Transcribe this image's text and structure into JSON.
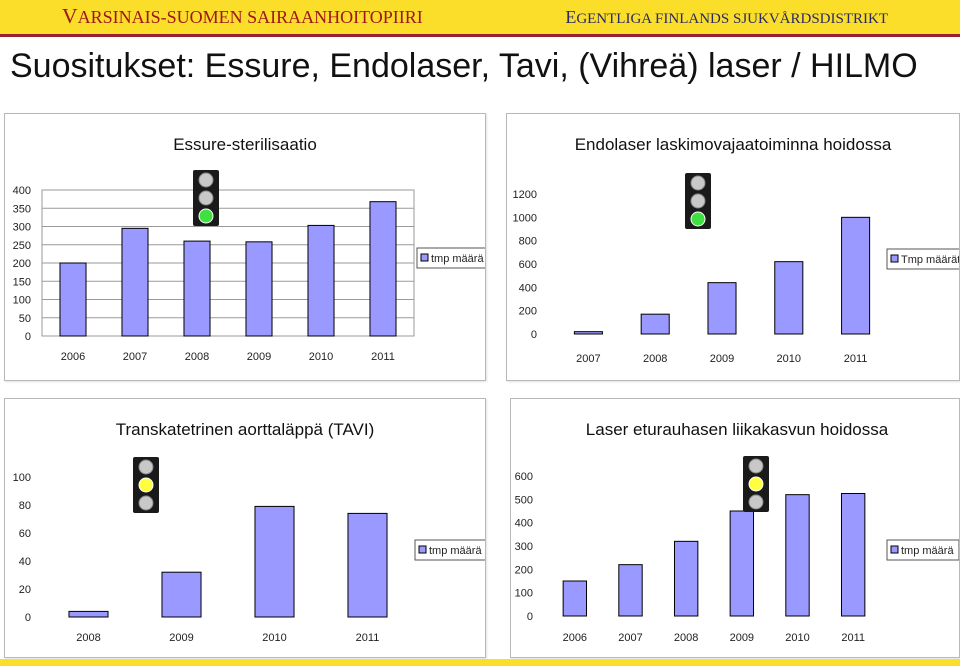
{
  "header": {
    "hospital_fi": "VARSINAIS-SUOMEN SAIRAANHOITOPIIRI",
    "hospital_sv": "EGENTLIGA FINLANDS SJUKVÅRDSDISTRIKT",
    "accent_color": "#fbde2a",
    "title": "Suositukset: Essure, Endolaser, Tavi, (Vihreä) laser / HILMO"
  },
  "chart_data": [
    {
      "type": "bar",
      "title": "Essure-sterilisaatio",
      "categories": [
        "2006",
        "2007",
        "2008",
        "2009",
        "2010",
        "2011"
      ],
      "series": [
        {
          "name": "tmp määrä",
          "values": [
            200,
            295,
            260,
            258,
            303,
            368
          ]
        }
      ],
      "ylim": [
        0,
        400
      ],
      "yticks": [
        "400",
        "350",
        "300",
        "250",
        "200",
        "150",
        "100",
        "50",
        "0"
      ],
      "grid": true,
      "legend": "right",
      "traffic_light": "green",
      "bar_color": "#9999ff"
    },
    {
      "type": "bar",
      "title": "Endolaser laskimovajaatoiminna hoidossa",
      "categories": [
        "2007",
        "2008",
        "2009",
        "2010",
        "2011"
      ],
      "series": [
        {
          "name": "Tmp määrät",
          "values": [
            20,
            170,
            440,
            620,
            1000
          ]
        }
      ],
      "ylim": [
        0,
        1200
      ],
      "yticks": [
        "1200",
        "1000",
        "800",
        "600",
        "400",
        "200",
        "0"
      ],
      "grid": false,
      "legend": "right",
      "traffic_light": "green",
      "bar_color": "#9999ff"
    },
    {
      "type": "bar",
      "title": "Transkatetrinen aorttaläppä (TAVI)",
      "categories": [
        "2008",
        "2009",
        "2010",
        "2011"
      ],
      "series": [
        {
          "name": "tmp määrä",
          "values": [
            4,
            32,
            79,
            74
          ]
        }
      ],
      "ylim": [
        0,
        100
      ],
      "yticks": [
        "100",
        "80",
        "60",
        "40",
        "20",
        "0"
      ],
      "grid": false,
      "legend": "right",
      "traffic_light": "yellow",
      "bar_color": "#9999ff"
    },
    {
      "type": "bar",
      "title": "Laser eturauhasen liikakasvun hoidossa",
      "categories": [
        "2006",
        "2007",
        "2008",
        "2009",
        "2010",
        "2011"
      ],
      "series": [
        {
          "name": "tmp määrä",
          "values": [
            150,
            220,
            320,
            450,
            520,
            525
          ]
        }
      ],
      "ylim": [
        0,
        600
      ],
      "yticks": [
        "600",
        "500",
        "400",
        "300",
        "200",
        "100",
        "0"
      ],
      "grid": false,
      "legend": "right",
      "traffic_light": "yellow",
      "bar_color": "#9999ff"
    }
  ]
}
